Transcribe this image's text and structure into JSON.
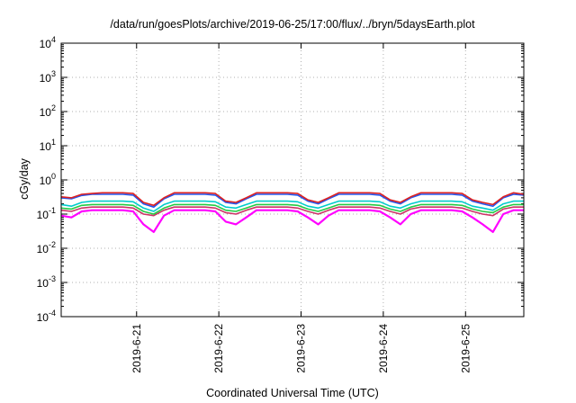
{
  "chart_data": {
    "type": "line",
    "title": "/data/run/goesPlots/archive/2019-06-25/17:00/flux/../bryn/5daysEarth.plot",
    "xlabel": "Coordinated Universal Time (UTC)",
    "ylabel": "cGy/day",
    "yscale": "log",
    "ylim": [
      0.0001,
      10000
    ],
    "y_ticks": [
      {
        "value": 0.0001,
        "base": "10",
        "exp": "-4"
      },
      {
        "value": 0.001,
        "base": "10",
        "exp": "-3"
      },
      {
        "value": 0.01,
        "base": "10",
        "exp": "-2"
      },
      {
        "value": 0.1,
        "base": "10",
        "exp": "-1"
      },
      {
        "value": 1,
        "base": "10",
        "exp": "0"
      },
      {
        "value": 10,
        "base": "10",
        "exp": "1"
      },
      {
        "value": 100,
        "base": "10",
        "exp": "2"
      },
      {
        "value": 1000,
        "base": "10",
        "exp": "3"
      },
      {
        "value": 10000,
        "base": "10",
        "exp": "4"
      }
    ],
    "xlim": [
      "2019-06-20 02:00",
      "2019-06-25 17:00"
    ],
    "x_ticks": [
      "2019-6-21",
      "2019-6-22",
      "2019-6-23",
      "2019-6-24",
      "2019-6-25"
    ],
    "x_tick_dates": [
      "2019-06-21 00:00",
      "2019-06-22 00:00",
      "2019-06-23 00:00",
      "2019-06-24 00:00",
      "2019-06-25 00:00"
    ],
    "grid": true,
    "legend": "none",
    "times": [
      "2019-06-20 02:00",
      "2019-06-20 05:00",
      "2019-06-20 08:00",
      "2019-06-20 11:00",
      "2019-06-20 14:00",
      "2019-06-20 17:00",
      "2019-06-20 20:00",
      "2019-06-20 23:00",
      "2019-06-21 02:00",
      "2019-06-21 05:00",
      "2019-06-21 08:00",
      "2019-06-21 11:00",
      "2019-06-21 14:00",
      "2019-06-21 17:00",
      "2019-06-21 20:00",
      "2019-06-21 23:00",
      "2019-06-22 02:00",
      "2019-06-22 05:00",
      "2019-06-22 08:00",
      "2019-06-22 11:00",
      "2019-06-22 14:00",
      "2019-06-22 17:00",
      "2019-06-22 20:00",
      "2019-06-22 23:00",
      "2019-06-23 02:00",
      "2019-06-23 05:00",
      "2019-06-23 08:00",
      "2019-06-23 11:00",
      "2019-06-23 14:00",
      "2019-06-23 17:00",
      "2019-06-23 20:00",
      "2019-06-23 23:00",
      "2019-06-24 02:00",
      "2019-06-24 05:00",
      "2019-06-24 08:00",
      "2019-06-24 11:00",
      "2019-06-24 14:00",
      "2019-06-24 17:00",
      "2019-06-24 20:00",
      "2019-06-24 23:00",
      "2019-06-25 02:00",
      "2019-06-25 05:00",
      "2019-06-25 08:00",
      "2019-06-25 11:00",
      "2019-06-25 14:00",
      "2019-06-25 17:00"
    ],
    "series": [
      {
        "color": "#ff00ff",
        "values": [
          0.09,
          0.08,
          0.12,
          0.13,
          0.13,
          0.13,
          0.13,
          0.12,
          0.05,
          0.03,
          0.09,
          0.13,
          0.13,
          0.13,
          0.13,
          0.12,
          0.06,
          0.05,
          0.08,
          0.13,
          0.13,
          0.13,
          0.13,
          0.12,
          0.08,
          0.05,
          0.09,
          0.13,
          0.13,
          0.13,
          0.13,
          0.12,
          0.08,
          0.05,
          0.1,
          0.13,
          0.13,
          0.13,
          0.13,
          0.12,
          0.08,
          0.05,
          0.03,
          0.1,
          0.13,
          0.13
        ]
      },
      {
        "color": "#cc3366",
        "values": [
          0.13,
          0.12,
          0.15,
          0.16,
          0.16,
          0.16,
          0.16,
          0.15,
          0.1,
          0.09,
          0.13,
          0.16,
          0.16,
          0.16,
          0.16,
          0.15,
          0.11,
          0.1,
          0.13,
          0.16,
          0.16,
          0.16,
          0.16,
          0.15,
          0.12,
          0.1,
          0.13,
          0.16,
          0.16,
          0.16,
          0.16,
          0.15,
          0.12,
          0.1,
          0.14,
          0.16,
          0.16,
          0.16,
          0.16,
          0.15,
          0.12,
          0.1,
          0.09,
          0.14,
          0.16,
          0.16
        ]
      },
      {
        "color": "#22cc44",
        "values": [
          0.15,
          0.14,
          0.18,
          0.19,
          0.19,
          0.19,
          0.19,
          0.18,
          0.12,
          0.1,
          0.15,
          0.19,
          0.19,
          0.19,
          0.19,
          0.18,
          0.13,
          0.12,
          0.15,
          0.19,
          0.19,
          0.19,
          0.19,
          0.18,
          0.14,
          0.12,
          0.15,
          0.19,
          0.19,
          0.19,
          0.19,
          0.18,
          0.14,
          0.12,
          0.16,
          0.19,
          0.19,
          0.19,
          0.19,
          0.18,
          0.14,
          0.12,
          0.11,
          0.16,
          0.19,
          0.19
        ]
      },
      {
        "color": "#00cccc",
        "values": [
          0.19,
          0.17,
          0.22,
          0.24,
          0.24,
          0.24,
          0.24,
          0.23,
          0.15,
          0.12,
          0.19,
          0.24,
          0.24,
          0.24,
          0.24,
          0.23,
          0.16,
          0.15,
          0.19,
          0.24,
          0.24,
          0.24,
          0.24,
          0.23,
          0.17,
          0.15,
          0.19,
          0.24,
          0.24,
          0.24,
          0.24,
          0.23,
          0.17,
          0.15,
          0.2,
          0.24,
          0.24,
          0.24,
          0.24,
          0.23,
          0.17,
          0.15,
          0.13,
          0.2,
          0.24,
          0.24
        ]
      },
      {
        "color": "#2255ee",
        "values": [
          0.3,
          0.28,
          0.35,
          0.38,
          0.38,
          0.38,
          0.38,
          0.36,
          0.2,
          0.16,
          0.28,
          0.38,
          0.38,
          0.38,
          0.38,
          0.36,
          0.22,
          0.2,
          0.28,
          0.38,
          0.38,
          0.38,
          0.38,
          0.36,
          0.24,
          0.2,
          0.28,
          0.38,
          0.38,
          0.38,
          0.38,
          0.36,
          0.24,
          0.2,
          0.3,
          0.38,
          0.38,
          0.38,
          0.38,
          0.36,
          0.24,
          0.2,
          0.17,
          0.3,
          0.38,
          0.36
        ]
      },
      {
        "color": "#dd2222",
        "values": [
          0.32,
          0.3,
          0.38,
          0.4,
          0.42,
          0.42,
          0.42,
          0.4,
          0.22,
          0.18,
          0.3,
          0.42,
          0.42,
          0.42,
          0.42,
          0.4,
          0.24,
          0.22,
          0.3,
          0.42,
          0.42,
          0.42,
          0.42,
          0.4,
          0.26,
          0.22,
          0.3,
          0.42,
          0.42,
          0.42,
          0.42,
          0.4,
          0.26,
          0.22,
          0.32,
          0.42,
          0.42,
          0.42,
          0.42,
          0.4,
          0.26,
          0.22,
          0.19,
          0.32,
          0.42,
          0.38
        ]
      }
    ]
  }
}
